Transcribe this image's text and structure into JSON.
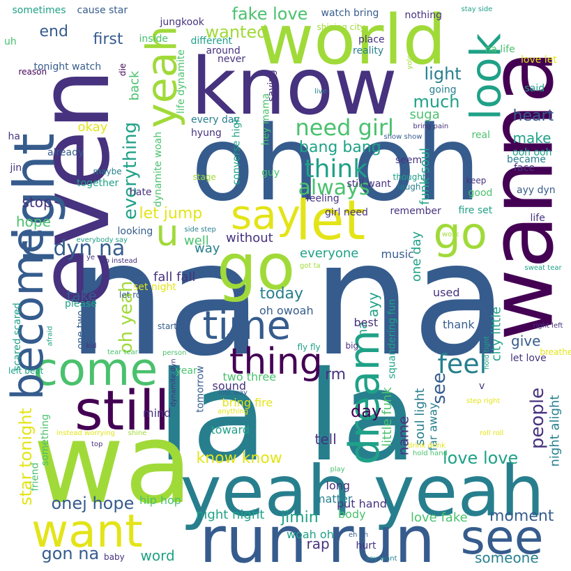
{
  "palette": {
    "p1": "#440154",
    "p2": "#46327e",
    "p3": "#365c8d",
    "p4": "#277f8e",
    "p5": "#1fa187",
    "p6": "#4ac16d",
    "p7": "#a0da39",
    "p8": "#e3e418"
  },
  "words": [
    {
      "text": "na na",
      "color": "p3"
    },
    {
      "text": "la la",
      "color": "p4"
    },
    {
      "text": "oh oh",
      "color": "p3"
    },
    {
      "text": "wa",
      "color": "p7"
    },
    {
      "text": "wanna",
      "color": "p1"
    },
    {
      "text": "even",
      "color": "p2"
    },
    {
      "text": "know",
      "color": "p2"
    },
    {
      "text": "world",
      "color": "p7"
    },
    {
      "text": "yeah yeah",
      "color": "p4"
    },
    {
      "text": "run run",
      "color": "p3"
    },
    {
      "text": "go",
      "color": "p7"
    },
    {
      "text": "right",
      "color": "p3"
    },
    {
      "text": "still",
      "color": "p1"
    },
    {
      "text": "come",
      "color": "p6"
    },
    {
      "text": "become",
      "color": "p3"
    },
    {
      "text": "want",
      "color": "p8"
    },
    {
      "text": "dream",
      "color": "p5"
    },
    {
      "text": "time",
      "color": "p3"
    },
    {
      "text": "let",
      "color": "p8"
    },
    {
      "text": "yeah",
      "color": "p7"
    },
    {
      "text": "look",
      "color": "p5"
    },
    {
      "text": "go",
      "color": "p7"
    },
    {
      "text": "say",
      "color": "p8"
    },
    {
      "text": "see",
      "color": "p3"
    },
    {
      "text": "thing",
      "color": "p1"
    },
    {
      "text": "u",
      "color": "p7"
    },
    {
      "text": "feel",
      "color": "p4"
    },
    {
      "text": "everything",
      "color": "p5"
    },
    {
      "text": "think",
      "color": "p5"
    },
    {
      "text": "need girl",
      "color": "p6"
    },
    {
      "text": "always",
      "color": "p6"
    },
    {
      "text": "people",
      "color": "p2"
    },
    {
      "text": "star tonight",
      "color": "p8"
    },
    {
      "text": "dyn na",
      "color": "p3"
    },
    {
      "text": "fake love",
      "color": "p6"
    },
    {
      "text": "wanted",
      "color": "p7"
    },
    {
      "text": "much",
      "color": "p5"
    },
    {
      "text": "light",
      "color": "p4"
    },
    {
      "text": "heart",
      "color": "p3"
    },
    {
      "text": "make",
      "color": "p5"
    },
    {
      "text": "day",
      "color": "p1"
    },
    {
      "text": "love love",
      "color": "p5"
    },
    {
      "text": "know know",
      "color": "p8"
    },
    {
      "text": "see",
      "color": "p3"
    },
    {
      "text": "today",
      "color": "p4"
    },
    {
      "text": "give",
      "color": "p3"
    },
    {
      "text": "onej hope",
      "color": "p3"
    },
    {
      "text": "gon na",
      "color": "p3"
    },
    {
      "text": "jimin",
      "color": "p5"
    },
    {
      "text": "moment",
      "color": "p3"
    },
    {
      "text": "someone",
      "color": "p4"
    },
    {
      "text": "word",
      "color": "p5"
    },
    {
      "text": "oh yeah",
      "color": "p7"
    },
    {
      "text": "let jump",
      "color": "p8"
    },
    {
      "text": "bang bang",
      "color": "p5"
    },
    {
      "text": "first",
      "color": "p3"
    },
    {
      "text": "end",
      "color": "p3"
    },
    {
      "text": "stop",
      "color": "p2"
    },
    {
      "text": "hope",
      "color": "p6"
    },
    {
      "text": "take",
      "color": "p3"
    },
    {
      "text": "rm",
      "color": "p2"
    },
    {
      "text": "name",
      "color": "p2"
    },
    {
      "text": "tell",
      "color": "p2"
    },
    {
      "text": "rap",
      "color": "p2"
    },
    {
      "text": "ayy",
      "color": "p5"
    },
    {
      "text": "na",
      "color": "p5"
    },
    {
      "text": "one day",
      "color": "p5"
    },
    {
      "text": "suga",
      "color": "p6"
    },
    {
      "text": "funk soul",
      "color": "p5"
    },
    {
      "text": "city little",
      "color": "p5"
    },
    {
      "text": "soul light",
      "color": "p4"
    },
    {
      "text": "little funk",
      "color": "p6"
    },
    {
      "text": "night alight",
      "color": "p4"
    },
    {
      "text": "everyone",
      "color": "p5"
    },
    {
      "text": "without",
      "color": "p2"
    },
    {
      "text": "well",
      "color": "p6"
    },
    {
      "text": "night night",
      "color": "p5"
    },
    {
      "text": "love fake",
      "color": "p6"
    },
    {
      "text": "okay",
      "color": "p8"
    },
    {
      "text": "back",
      "color": "p6"
    },
    {
      "text": "way",
      "color": "p4"
    },
    {
      "text": "fall fall",
      "color": "p2"
    },
    {
      "text": "oh owoah",
      "color": "p3"
    },
    {
      "text": "two three",
      "color": "p6"
    },
    {
      "text": "bring fire",
      "color": "p8"
    },
    {
      "text": "toward",
      "color": "p5"
    },
    {
      "text": "mind",
      "color": "p2"
    },
    {
      "text": "sound",
      "color": "p2"
    },
    {
      "text": "hip hop",
      "color": "p6"
    },
    {
      "text": "put hand",
      "color": "p2"
    },
    {
      "text": "matter",
      "color": "p4"
    },
    {
      "text": "body",
      "color": "p6"
    },
    {
      "text": "woah oh",
      "color": "p5"
    },
    {
      "text": "music",
      "color": "p3"
    },
    {
      "text": "best",
      "color": "p2"
    },
    {
      "text": "used",
      "color": "p2"
    },
    {
      "text": "thank",
      "color": "p3"
    },
    {
      "text": "long",
      "color": "p2"
    },
    {
      "text": "far away",
      "color": "p4"
    },
    {
      "text": "sometimes",
      "color": "p5"
    },
    {
      "text": "cause star",
      "color": "p3"
    },
    {
      "text": "watch bring",
      "color": "p3"
    },
    {
      "text": "nothing",
      "color": "p2"
    },
    {
      "text": "na life",
      "color": "p6"
    },
    {
      "text": "stay side",
      "color": "p5"
    },
    {
      "text": "jungkook",
      "color": "p2"
    },
    {
      "text": "shining city",
      "color": "p7"
    },
    {
      "text": "inside",
      "color": "p6"
    },
    {
      "text": "different",
      "color": "p5"
    },
    {
      "text": "place",
      "color": "p2"
    },
    {
      "text": "reality",
      "color": "p4"
    },
    {
      "text": "uh",
      "color": "p6"
    },
    {
      "text": "tonight watch",
      "color": "p3"
    },
    {
      "text": "around",
      "color": "p2"
    },
    {
      "text": "never",
      "color": "p2"
    },
    {
      "text": "love let",
      "color": "p8"
    },
    {
      "text": "said",
      "color": "p5"
    },
    {
      "text": "going",
      "color": "p4"
    },
    {
      "text": "reason",
      "color": "p1"
    },
    {
      "text": "die",
      "color": "p1"
    },
    {
      "text": "life dynamite",
      "color": "p6"
    },
    {
      "text": "saying",
      "color": "p2"
    },
    {
      "text": "live",
      "color": "p4"
    },
    {
      "text": "yolo yolo",
      "color": "p7"
    },
    {
      "text": "bring pain",
      "color": "p2"
    },
    {
      "text": "real",
      "color": "p6"
    },
    {
      "text": "show show",
      "color": "p3"
    },
    {
      "text": "every day",
      "color": "p4"
    },
    {
      "text": "hyung",
      "color": "p2"
    },
    {
      "text": "converse high",
      "color": "p5"
    },
    {
      "text": "hey mama",
      "color": "p6"
    },
    {
      "text": "ha",
      "color": "p2"
    },
    {
      "text": "already",
      "color": "p3"
    },
    {
      "text": "jin",
      "color": "p2"
    },
    {
      "text": "maybe",
      "color": "p4"
    },
    {
      "text": "together",
      "color": "p5"
    },
    {
      "text": "hate",
      "color": "p2"
    },
    {
      "text": "dynamite woah",
      "color": "p6"
    },
    {
      "text": "stage",
      "color": "p7"
    },
    {
      "text": "guy",
      "color": "p6"
    },
    {
      "text": "seem",
      "color": "p2"
    },
    {
      "text": "thought",
      "color": "p5"
    },
    {
      "text": "laugh",
      "color": "p4"
    },
    {
      "text": "keep",
      "color": "p2"
    },
    {
      "text": "good",
      "color": "p6"
    },
    {
      "text": "face",
      "color": "p2"
    },
    {
      "text": "became",
      "color": "p4"
    },
    {
      "text": "ooh ooh",
      "color": "p5"
    },
    {
      "text": "ayy dyn",
      "color": "p3"
    },
    {
      "text": "still want",
      "color": "p2"
    },
    {
      "text": "feeling",
      "color": "p2"
    },
    {
      "text": "girl need",
      "color": "p2"
    },
    {
      "text": "remember",
      "color": "p2"
    },
    {
      "text": "fire set",
      "color": "p5"
    },
    {
      "text": "life",
      "color": "p2"
    },
    {
      "text": "work",
      "color": "p7"
    },
    {
      "text": "looking",
      "color": "p3"
    },
    {
      "text": "side step",
      "color": "p4"
    },
    {
      "text": "everybody say",
      "color": "p5"
    },
    {
      "text": "ye",
      "color": "p2"
    },
    {
      "text": "go instead",
      "color": "p2"
    },
    {
      "text": "got ta",
      "color": "p7"
    },
    {
      "text": "sweat tear",
      "color": "p5"
    },
    {
      "text": "set night",
      "color": "p8"
    },
    {
      "text": "let roll",
      "color": "p3"
    },
    {
      "text": "please",
      "color": "p5"
    },
    {
      "text": "scared scared",
      "color": "p5"
    },
    {
      "text": "one two",
      "color": "p3"
    },
    {
      "text": "afraid",
      "color": "p5"
    },
    {
      "text": "kid",
      "color": "p2"
    },
    {
      "text": "start",
      "color": "p3"
    },
    {
      "text": "smile",
      "color": "p3"
    },
    {
      "text": "tear tear",
      "color": "p6"
    },
    {
      "text": "person",
      "color": "p6"
    },
    {
      "text": "fly fly",
      "color": "p5"
    },
    {
      "text": "big",
      "color": "p2"
    },
    {
      "text": "squandering fun",
      "color": "p5"
    },
    {
      "text": "right left",
      "color": "p2"
    },
    {
      "text": "breathe",
      "color": "p8"
    },
    {
      "text": "let love",
      "color": "p2"
    },
    {
      "text": "hold tight",
      "color": "p5"
    },
    {
      "text": "left beat",
      "color": "p5"
    },
    {
      "text": "year",
      "color": "p6"
    },
    {
      "text": "tomorrow",
      "color": "p3"
    },
    {
      "text": "dynamite dyn",
      "color": "p2"
    },
    {
      "text": "lost way",
      "color": "p3"
    },
    {
      "text": "anything",
      "color": "p8"
    },
    {
      "text": "v",
      "color": "p2"
    },
    {
      "text": "step right",
      "color": "p8"
    },
    {
      "text": "roll roll",
      "color": "p8"
    },
    {
      "text": "drink drink",
      "color": "p8"
    },
    {
      "text": "instead worrying",
      "color": "p8"
    },
    {
      "text": "shine",
      "color": "p7"
    },
    {
      "text": "top",
      "color": "p2"
    },
    {
      "text": "something",
      "color": "p6"
    },
    {
      "text": "friend",
      "color": "p6"
    },
    {
      "text": "hold hand",
      "color": "p6"
    },
    {
      "text": "play",
      "color": "p6"
    },
    {
      "text": "eh oh",
      "color": "p3"
    },
    {
      "text": "hurt",
      "color": "p2"
    },
    {
      "text": "baby",
      "color": "p2"
    },
    {
      "text": "say want",
      "color": "p4"
    }
  ]
}
